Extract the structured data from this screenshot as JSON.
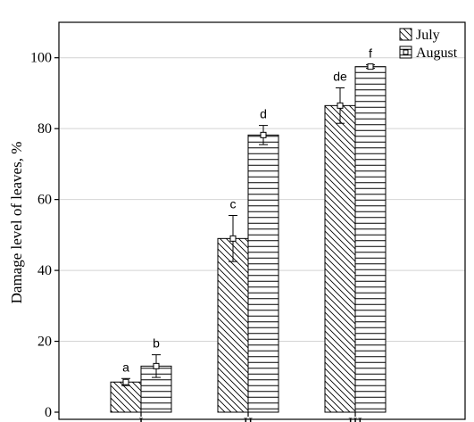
{
  "chart_data": {
    "type": "bar",
    "title": "",
    "xlabel": "",
    "ylabel": "Damage level of leaves, %",
    "categories": [
      "I",
      "II",
      "III"
    ],
    "ylim": [
      0,
      110
    ],
    "yticks": [
      "0",
      "20",
      "40",
      "60",
      "80",
      "100"
    ],
    "grid": "horizontal",
    "legend_position": "top-right",
    "series": [
      {
        "name": "July",
        "pattern": "diagonal-hatch",
        "values": [
          8.5,
          49,
          86.5
        ],
        "error": [
          1,
          6.5,
          5
        ],
        "letters": [
          "a",
          "c",
          "de"
        ]
      },
      {
        "name": "August",
        "pattern": "horizontal-lines",
        "values": [
          13,
          78.2,
          97.5
        ],
        "error": [
          3.2,
          2.7,
          0.5
        ],
        "letters": [
          "b",
          "d",
          "f"
        ]
      }
    ],
    "colors": {
      "bar_stroke": "#000000",
      "bar_fill": "#ffffff",
      "grid": "#d4d4d4",
      "frame": "#000000"
    }
  }
}
